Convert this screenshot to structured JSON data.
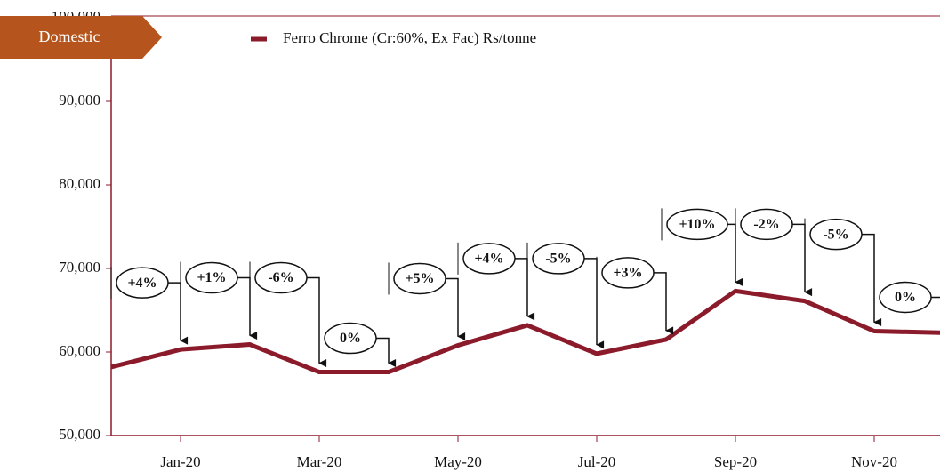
{
  "chart_data": {
    "type": "line",
    "tag": "Domestic",
    "legend": "top",
    "categories": [
      null,
      "Jan-20",
      null,
      "Mar-20",
      null,
      "May-20",
      null,
      "Jul-20",
      null,
      "Sep-20",
      null,
      "Nov-20",
      null
    ],
    "series": [
      {
        "name": "Ferro Chrome (Cr:60%, Ex Fac) Rs/tonne",
        "color": "#8b1a2a",
        "values": [
          58200,
          60300,
          60900,
          57600,
          57600,
          60800,
          63200,
          59800,
          61500,
          67300,
          66100,
          62500,
          62300
        ]
      }
    ],
    "change_labels": [
      null,
      "+4%",
      "+1%",
      "-6%",
      "0%",
      "+5%",
      "+4%",
      "-5%",
      "+3%",
      "+10%",
      "-2%",
      "-5%",
      "0%"
    ],
    "ylim": [
      50000,
      100000
    ],
    "yticks": [
      {
        "value": 50000,
        "label": "50,000"
      },
      {
        "value": 60000,
        "label": "60,000"
      },
      {
        "value": 70000,
        "label": "70,000"
      },
      {
        "value": 80000,
        "label": "80,000"
      },
      {
        "value": 90000,
        "label": "90,000"
      },
      {
        "value": 100000,
        "label": "100,000"
      }
    ]
  }
}
